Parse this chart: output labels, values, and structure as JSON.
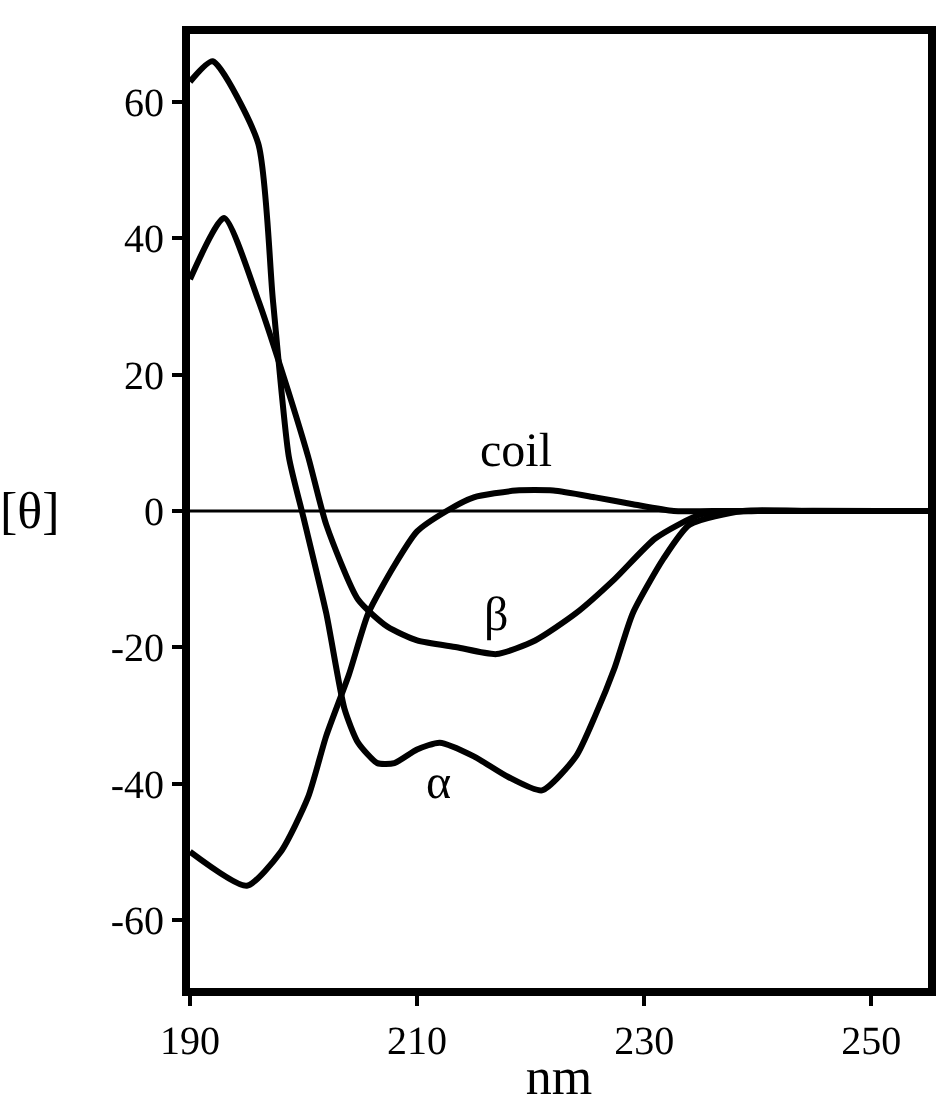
{
  "chart_data": {
    "type": "line",
    "xlabel": "nm",
    "ylabel": "[θ]",
    "xlim": [
      190,
      255
    ],
    "xticks": [
      190,
      210,
      230,
      250
    ],
    "ylim": [
      -70,
      70
    ],
    "yticks": [
      -60,
      -40,
      -20,
      0,
      20,
      40,
      60
    ],
    "grid": false,
    "marker": "none",
    "line_style": "solid",
    "series": [
      {
        "color": "#000000",
        "x": [
          190,
          192,
          196,
          197.3,
          198.7,
          200,
          202,
          203.6,
          204.8,
          206.5,
          208,
          210,
          212,
          215,
          218,
          221,
          224,
          225.7,
          227.4,
          229,
          231.7,
          234,
          238.7,
          245,
          255
        ],
        "values": [
          63,
          66,
          54,
          31,
          8,
          -1,
          -15,
          -29,
          -34,
          -37,
          -37,
          -35,
          -34,
          -36,
          -39,
          -41,
          -36,
          -30,
          -23,
          -15,
          -7,
          -2,
          0,
          0,
          0
        ]
      },
      {
        "color": "#000000",
        "x": [
          190,
          193,
          196,
          198,
          200.4,
          202,
          204.8,
          207.4,
          210,
          213.5,
          217,
          220.4,
          224,
          227.4,
          231,
          235,
          240,
          255
        ],
        "values": [
          34,
          43,
          31,
          21,
          8,
          -2,
          -13,
          -17,
          -19,
          -20,
          -21,
          -19,
          -15,
          -10,
          -4,
          -0.5,
          0,
          0
        ]
      },
      {
        "color": "#000000",
        "x": [
          190,
          195,
          198,
          200.4,
          202,
          204,
          205.7,
          208,
          210,
          212.6,
          215,
          218.7,
          222,
          225.7,
          229,
          232.6,
          236,
          255
        ],
        "values": [
          -50,
          -55,
          -50,
          -42,
          -33,
          -24,
          -15,
          -8,
          -3,
          0,
          2,
          3,
          3,
          2,
          1,
          0,
          0,
          0
        ]
      }
    ],
    "ref_lines": [
      {
        "axis": "y",
        "value": 0,
        "color": "#000000"
      }
    ],
    "annotations": [
      {
        "text": "coil",
        "x": 218.7,
        "y": 3
      },
      {
        "text": "β",
        "x": 217,
        "y": -21
      },
      {
        "text": "α",
        "x": 212,
        "y": -34
      }
    ]
  }
}
